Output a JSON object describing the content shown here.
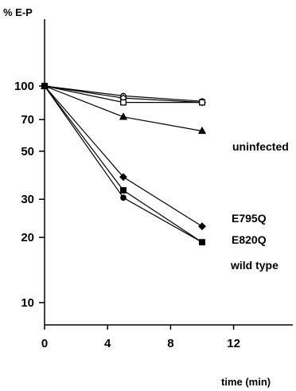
{
  "chart_data": {
    "type": "line",
    "ylabel": "% E-P",
    "xlabel": "time (min)",
    "x_ticks": [
      0,
      4,
      8,
      12
    ],
    "x_tick_labels": [
      "0",
      "4",
      "8",
      "12"
    ],
    "xlim": [
      0,
      13.5
    ],
    "y_scale": "log",
    "y_ticks": [
      10,
      20,
      30,
      50,
      70,
      100
    ],
    "y_tick_labels": [
      "10",
      "20",
      "30",
      "50",
      "70",
      "100"
    ],
    "ylim": [
      8,
      190
    ],
    "grid": false,
    "series": [
      {
        "name": "",
        "marker": "open-circle",
        "x": [
          0,
          5,
          10
        ],
        "y": [
          100,
          90,
          85
        ]
      },
      {
        "name": "",
        "marker": "open-diamond",
        "x": [
          0,
          5,
          10
        ],
        "y": [
          100,
          88,
          84
        ]
      },
      {
        "name": "",
        "marker": "open-square",
        "x": [
          0,
          5,
          10
        ],
        "y": [
          100,
          84,
          84
        ]
      },
      {
        "name": "uninfected",
        "marker": "filled-triangle",
        "x": [
          0,
          5,
          10
        ],
        "y": [
          100,
          72,
          62
        ]
      },
      {
        "name": "E795Q",
        "marker": "filled-diamond",
        "x": [
          0,
          5,
          10
        ],
        "y": [
          100,
          38,
          22.5
        ]
      },
      {
        "name": "E820Q",
        "marker": "filled-square",
        "x": [
          0,
          5,
          10
        ],
        "y": [
          100,
          33,
          19
        ]
      },
      {
        "name": "wild type",
        "marker": "filled-circle",
        "x": [
          0,
          5,
          10
        ],
        "y": [
          100,
          30.5,
          19
        ]
      }
    ]
  }
}
